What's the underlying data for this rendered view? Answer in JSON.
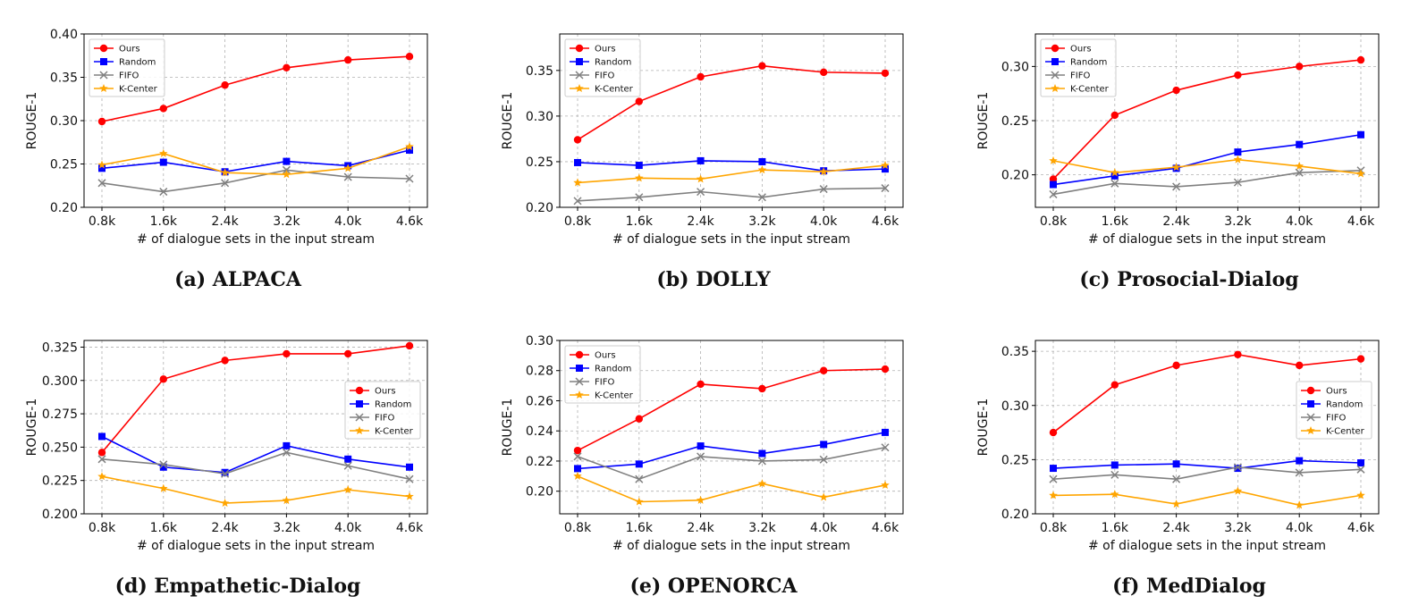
{
  "figure": {
    "xlabel": "# of dialogue sets in the input stream",
    "ylabel": "ROUGE-1"
  },
  "chart_data": [
    {
      "type": "line",
      "caption": "(a) ALPACA",
      "categories": [
        "0.8k",
        "1.6k",
        "2.4k",
        "3.2k",
        "4.0k",
        "4.6k"
      ],
      "xlabel": "# of dialogue sets in the input stream",
      "ylabel": "ROUGE-1",
      "ylim": [
        0.2,
        0.4
      ],
      "yticks": [
        "0.20",
        "0.25",
        "0.30",
        "0.35",
        "0.40"
      ],
      "grid": true,
      "legend_position": "top-left",
      "series": [
        {
          "name": "Ours",
          "color": "#ff0000",
          "marker": "circle",
          "values": [
            0.299,
            0.314,
            0.341,
            0.361,
            0.37,
            0.374
          ]
        },
        {
          "name": "Random",
          "color": "#0000ff",
          "marker": "square",
          "values": [
            0.245,
            0.252,
            0.241,
            0.253,
            0.248,
            0.266
          ]
        },
        {
          "name": "FIFO",
          "color": "#808080",
          "marker": "x",
          "values": [
            0.228,
            0.218,
            0.228,
            0.243,
            0.235,
            0.233
          ]
        },
        {
          "name": "K-Center",
          "color": "#ffa500",
          "marker": "star",
          "values": [
            0.249,
            0.262,
            0.24,
            0.238,
            0.245,
            0.27
          ]
        }
      ]
    },
    {
      "type": "line",
      "caption": "(b) DOLLY",
      "categories": [
        "0.8k",
        "1.6k",
        "2.4k",
        "3.2k",
        "4.0k",
        "4.6k"
      ],
      "xlabel": "# of dialogue sets in the input stream",
      "ylabel": "ROUGE-1",
      "ylim": [
        0.2,
        0.39
      ],
      "yticks": [
        "0.20",
        "0.25",
        "0.30",
        "0.35"
      ],
      "grid": true,
      "legend_position": "top-left",
      "series": [
        {
          "name": "Ours",
          "color": "#ff0000",
          "marker": "circle",
          "values": [
            0.274,
            0.316,
            0.343,
            0.355,
            0.348,
            0.347
          ]
        },
        {
          "name": "Random",
          "color": "#0000ff",
          "marker": "square",
          "values": [
            0.249,
            0.246,
            0.251,
            0.25,
            0.24,
            0.242
          ]
        },
        {
          "name": "FIFO",
          "color": "#808080",
          "marker": "x",
          "values": [
            0.207,
            0.211,
            0.217,
            0.211,
            0.22,
            0.221
          ]
        },
        {
          "name": "K-Center",
          "color": "#ffa500",
          "marker": "star",
          "values": [
            0.227,
            0.232,
            0.231,
            0.241,
            0.239,
            0.246
          ]
        }
      ]
    },
    {
      "type": "line",
      "caption": "(c) Prosocial-Dialog",
      "categories": [
        "0.8k",
        "1.6k",
        "2.4k",
        "3.2k",
        "4.0k",
        "4.6k"
      ],
      "xlabel": "# of dialogue sets in the input stream",
      "ylabel": "ROUGE-1",
      "ylim": [
        0.17,
        0.33
      ],
      "yticks": [
        "0.20",
        "0.25",
        "0.30"
      ],
      "grid": true,
      "legend_position": "top-left",
      "series": [
        {
          "name": "Ours",
          "color": "#ff0000",
          "marker": "circle",
          "values": [
            0.196,
            0.255,
            0.278,
            0.292,
            0.3,
            0.306
          ]
        },
        {
          "name": "Random",
          "color": "#0000ff",
          "marker": "square",
          "values": [
            0.191,
            0.199,
            0.206,
            0.221,
            0.228,
            0.237
          ]
        },
        {
          "name": "FIFO",
          "color": "#808080",
          "marker": "x",
          "values": [
            0.182,
            0.192,
            0.189,
            0.193,
            0.202,
            0.204
          ]
        },
        {
          "name": "K-Center",
          "color": "#ffa500",
          "marker": "star",
          "values": [
            0.213,
            0.202,
            0.207,
            0.214,
            0.208,
            0.201
          ]
        }
      ]
    },
    {
      "type": "line",
      "caption": "(d) Empathetic-Dialog",
      "categories": [
        "0.8k",
        "1.6k",
        "2.4k",
        "3.2k",
        "4.0k",
        "4.6k"
      ],
      "xlabel": "# of dialogue sets in the input stream",
      "ylabel": "ROUGE-1",
      "ylim": [
        0.2,
        0.33
      ],
      "yticks": [
        "0.200",
        "0.225",
        "0.250",
        "0.275",
        "0.300",
        "0.325"
      ],
      "grid": true,
      "legend_position": "center-right",
      "series": [
        {
          "name": "Ours",
          "color": "#ff0000",
          "marker": "circle",
          "values": [
            0.246,
            0.301,
            0.315,
            0.32,
            0.32,
            0.326
          ]
        },
        {
          "name": "Random",
          "color": "#0000ff",
          "marker": "square",
          "values": [
            0.258,
            0.235,
            0.231,
            0.251,
            0.241,
            0.235
          ]
        },
        {
          "name": "FIFO",
          "color": "#808080",
          "marker": "x",
          "values": [
            0.241,
            0.237,
            0.23,
            0.246,
            0.236,
            0.226
          ]
        },
        {
          "name": "K-Center",
          "color": "#ffa500",
          "marker": "star",
          "values": [
            0.228,
            0.219,
            0.208,
            0.21,
            0.218,
            0.213
          ]
        }
      ]
    },
    {
      "type": "line",
      "caption": "(e) OPENORCA",
      "categories": [
        "0.8k",
        "1.6k",
        "2.4k",
        "3.2k",
        "4.0k",
        "4.6k"
      ],
      "xlabel": "# of dialogue sets in the input stream",
      "ylabel": "ROUGE-1",
      "ylim": [
        0.185,
        0.3
      ],
      "yticks": [
        "0.20",
        "0.22",
        "0.24",
        "0.26",
        "0.28",
        "0.30"
      ],
      "grid": true,
      "legend_position": "top-left",
      "series": [
        {
          "name": "Ours",
          "color": "#ff0000",
          "marker": "circle",
          "values": [
            0.227,
            0.248,
            0.271,
            0.268,
            0.28,
            0.281
          ]
        },
        {
          "name": "Random",
          "color": "#0000ff",
          "marker": "square",
          "values": [
            0.215,
            0.218,
            0.23,
            0.225,
            0.231,
            0.239
          ]
        },
        {
          "name": "FIFO",
          "color": "#808080",
          "marker": "x",
          "values": [
            0.223,
            0.208,
            0.223,
            0.22,
            0.221,
            0.229
          ]
        },
        {
          "name": "K-Center",
          "color": "#ffa500",
          "marker": "star",
          "values": [
            0.21,
            0.193,
            0.194,
            0.205,
            0.196,
            0.204
          ]
        }
      ]
    },
    {
      "type": "line",
      "caption": "(f) MedDialog",
      "categories": [
        "0.8k",
        "1.6k",
        "2.4k",
        "3.2k",
        "4.0k",
        "4.6k"
      ],
      "xlabel": "# of dialogue sets in the input stream",
      "ylabel": "ROUGE-1",
      "ylim": [
        0.2,
        0.36
      ],
      "yticks": [
        "0.20",
        "0.25",
        "0.30",
        "0.35"
      ],
      "grid": true,
      "legend_position": "center-right",
      "series": [
        {
          "name": "Ours",
          "color": "#ff0000",
          "marker": "circle",
          "values": [
            0.275,
            0.319,
            0.337,
            0.347,
            0.337,
            0.343
          ]
        },
        {
          "name": "Random",
          "color": "#0000ff",
          "marker": "square",
          "values": [
            0.242,
            0.245,
            0.246,
            0.242,
            0.249,
            0.247
          ]
        },
        {
          "name": "FIFO",
          "color": "#808080",
          "marker": "x",
          "values": [
            0.232,
            0.236,
            0.232,
            0.243,
            0.238,
            0.241
          ]
        },
        {
          "name": "K-Center",
          "color": "#ffa500",
          "marker": "star",
          "values": [
            0.217,
            0.218,
            0.209,
            0.221,
            0.208,
            0.217
          ]
        }
      ]
    }
  ]
}
